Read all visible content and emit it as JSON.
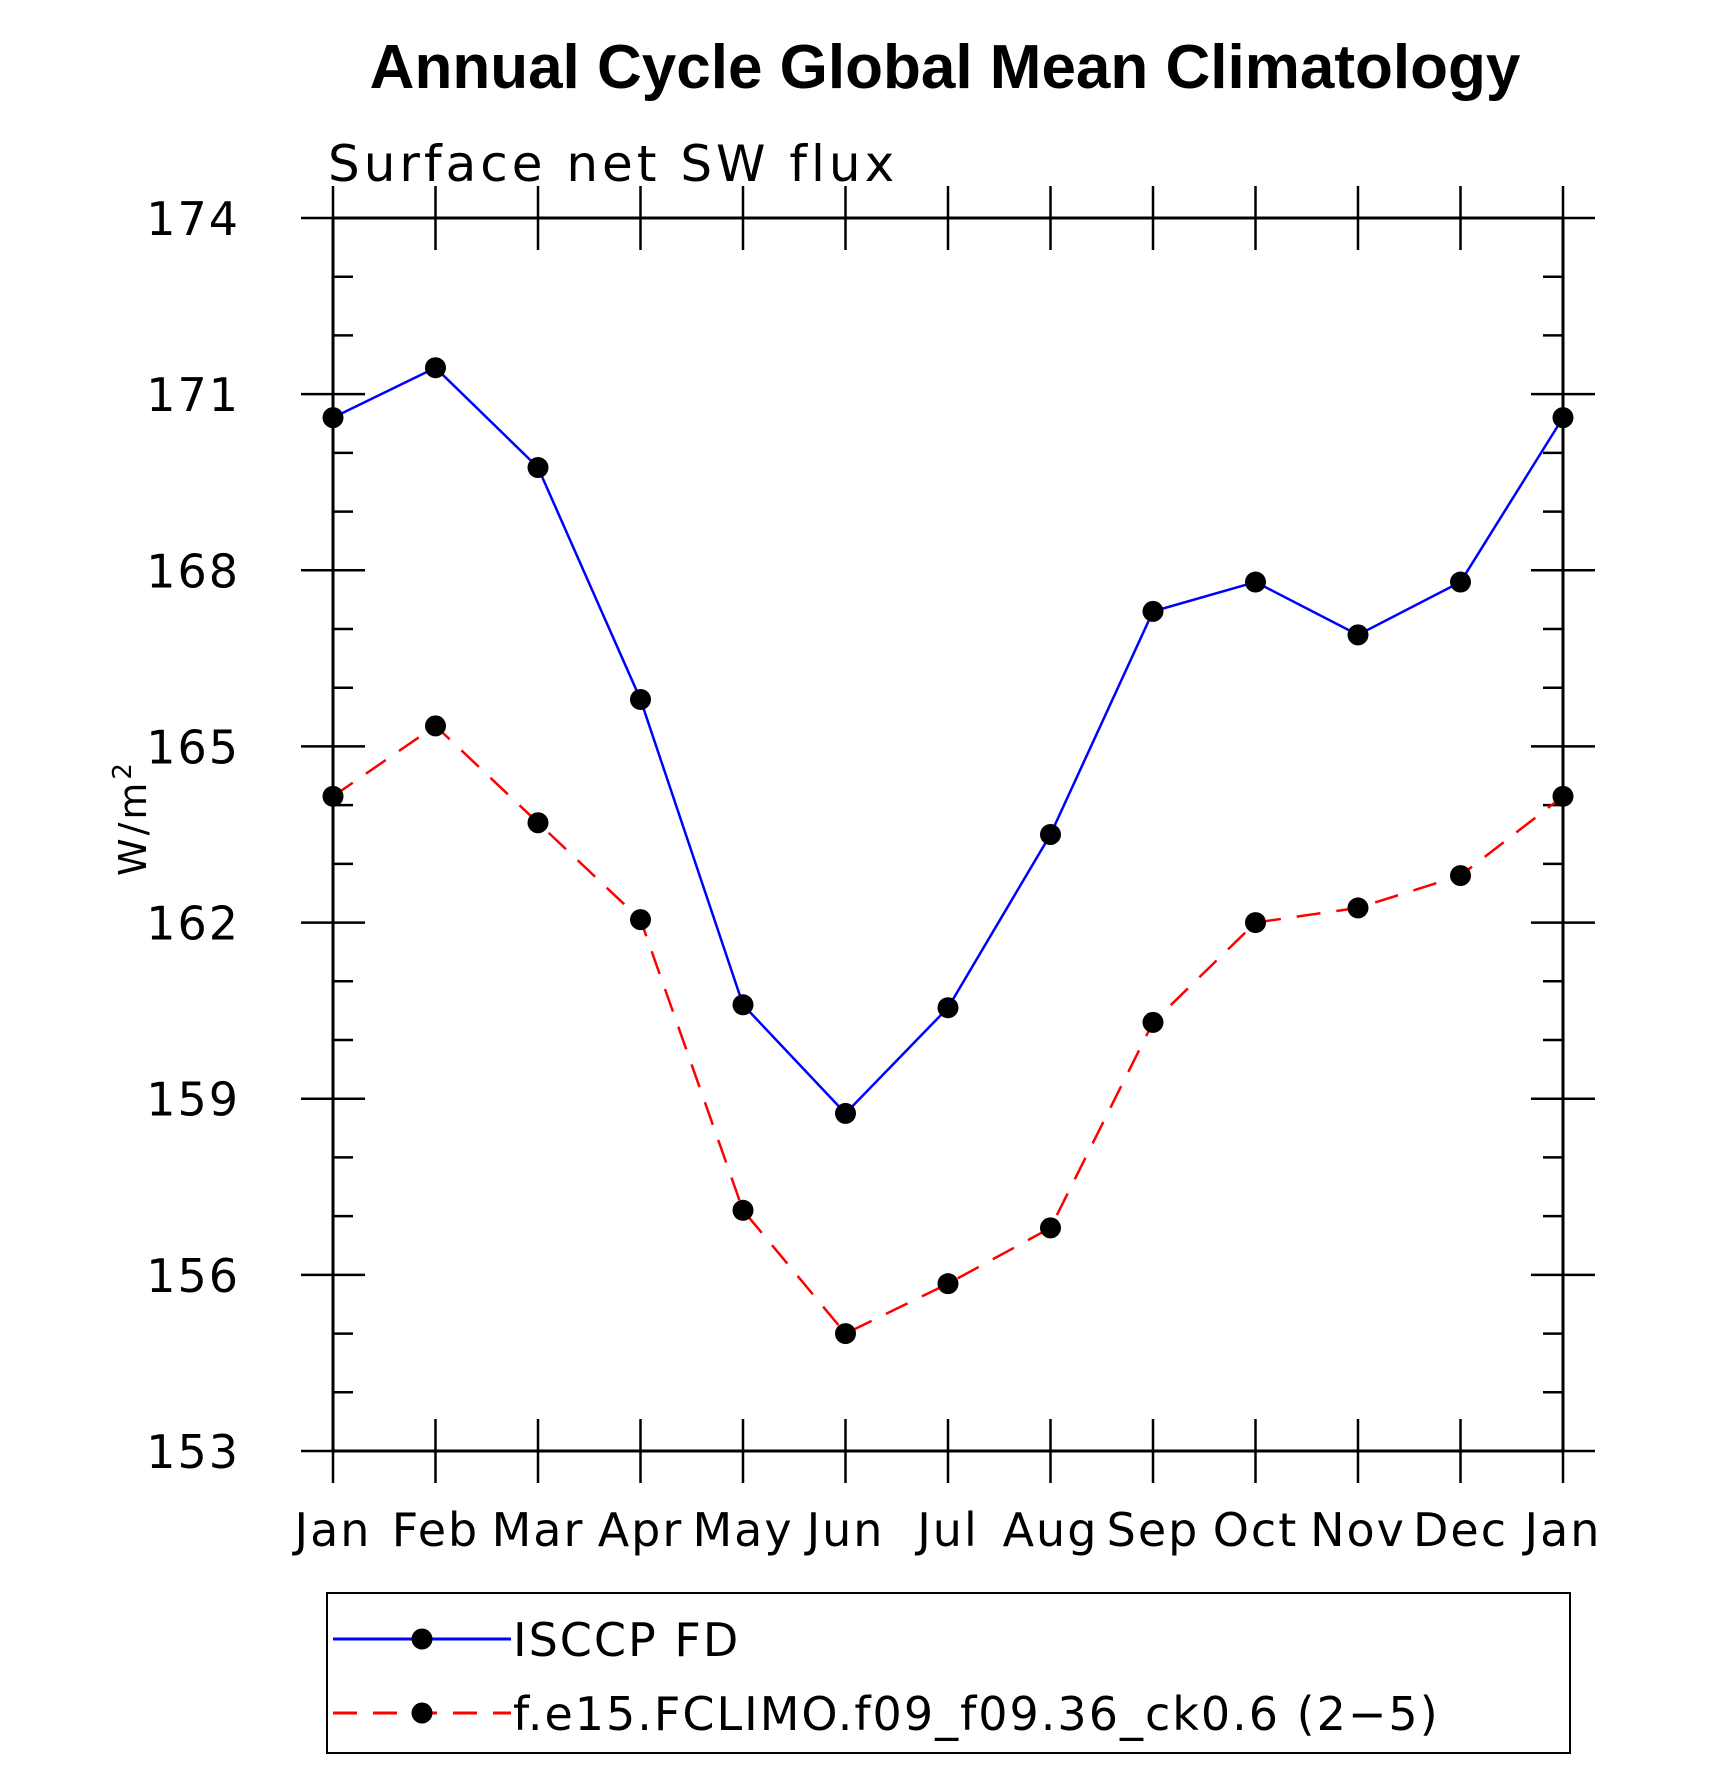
{
  "chart_data": {
    "type": "line",
    "title": "Annual Cycle Global Mean Climatology",
    "subtitle": "Surface net SW flux",
    "ylabel_base": "W/m",
    "ylabel_sup": "2",
    "xlabel": "",
    "categories": [
      "Jan",
      "Feb",
      "Mar",
      "Apr",
      "May",
      "Jun",
      "Jul",
      "Aug",
      "Sep",
      "Oct",
      "Nov",
      "Dec",
      "Jan"
    ],
    "ylim": [
      153,
      174
    ],
    "yticks": [
      153,
      156,
      159,
      162,
      165,
      168,
      171,
      174
    ],
    "yminor_step": 1,
    "grid": false,
    "legend_position": "bottom",
    "series": [
      {
        "name": "ISCCP FD",
        "color": "#0000ff",
        "line_style": "solid",
        "marker": "filled-circle",
        "values": [
          170.6,
          171.45,
          169.75,
          165.8,
          160.6,
          158.75,
          160.55,
          163.5,
          167.3,
          167.8,
          166.9,
          167.8,
          170.6
        ]
      },
      {
        "name": "f.e15.FCLIMO.f09_f09.36_ck0.6 (2−5)",
        "color": "#ff0000",
        "line_style": "dashed",
        "marker": "filled-circle",
        "values": [
          164.15,
          165.35,
          163.7,
          162.05,
          157.1,
          155.0,
          155.85,
          156.8,
          160.3,
          162.0,
          162.25,
          162.8,
          164.15
        ]
      }
    ]
  }
}
